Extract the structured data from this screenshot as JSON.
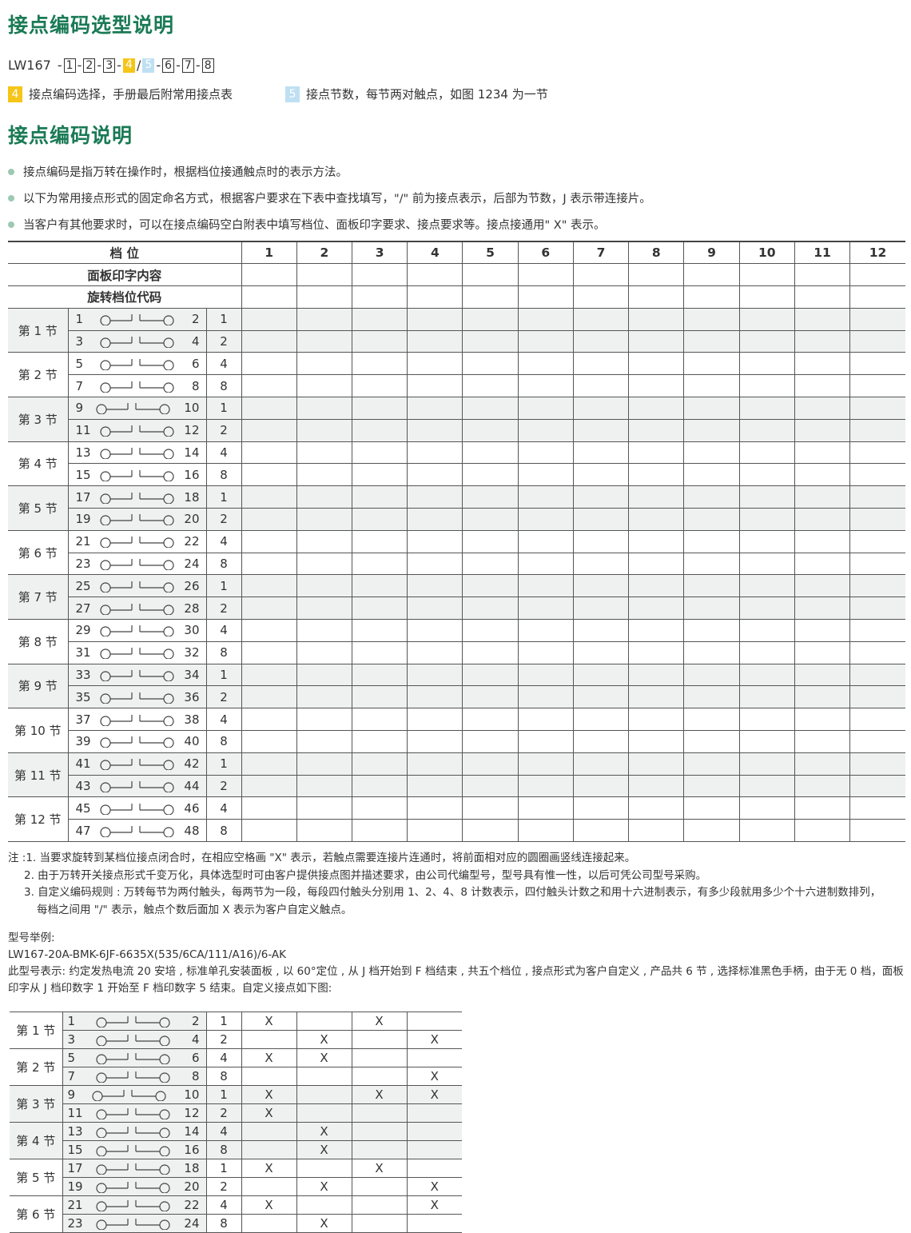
{
  "colors": {
    "heading": "#1a7a55",
    "highlight_4": "#f5c518",
    "highlight_5": "#bfe0f2",
    "row_shade": "#eff0f0"
  },
  "title1": "接点编码选型说明",
  "model_code": {
    "prefix": "LW167",
    "boxes": [
      "1",
      "2",
      "3",
      "4",
      "5",
      "6",
      "7",
      "8"
    ],
    "separator_slash": "/"
  },
  "legend": [
    {
      "tag": "4",
      "text": "接点编码选择，手册最后附常用接点表"
    },
    {
      "tag": "5",
      "text": "接点节数，每节两对触点，如图 1234 为一节"
    }
  ],
  "title2": "接点编码说明",
  "bullets": [
    "接点编码是指万转在操作时，根据档位接通触点时的表示方法。",
    "以下为常用接点形式的固定命名方式，根据客户要求在下表中查找填写，\"/\" 前为接点表示，后部为节数，J 表示带连接片。",
    "当客户有其他要求时，可以在接点编码空白附表中填写档位、面板印字要求、接点要求等。接点接通用\" X\" 表示。"
  ],
  "main_table": {
    "header_position": "档 位",
    "header_panel_text": "面板印字内容",
    "header_rotation_code": "旋转档位代码",
    "positions": [
      "1",
      "2",
      "3",
      "4",
      "5",
      "6",
      "7",
      "8",
      "9",
      "10",
      "11",
      "12"
    ],
    "contact_icon": "switch-contact-icon",
    "sections": [
      {
        "label": "第 1 节",
        "rows": [
          [
            "1",
            "2",
            "1"
          ],
          [
            "3",
            "4",
            "2"
          ]
        ]
      },
      {
        "label": "第 2 节",
        "rows": [
          [
            "5",
            "6",
            "4"
          ],
          [
            "7",
            "8",
            "8"
          ]
        ]
      },
      {
        "label": "第 3 节",
        "rows": [
          [
            "9",
            "10",
            "1"
          ],
          [
            "11",
            "12",
            "2"
          ]
        ]
      },
      {
        "label": "第 4 节",
        "rows": [
          [
            "13",
            "14",
            "4"
          ],
          [
            "15",
            "16",
            "8"
          ]
        ]
      },
      {
        "label": "第 5 节",
        "rows": [
          [
            "17",
            "18",
            "1"
          ],
          [
            "19",
            "20",
            "2"
          ]
        ]
      },
      {
        "label": "第 6 节",
        "rows": [
          [
            "21",
            "22",
            "4"
          ],
          [
            "23",
            "24",
            "8"
          ]
        ]
      },
      {
        "label": "第 7 节",
        "rows": [
          [
            "25",
            "26",
            "1"
          ],
          [
            "27",
            "28",
            "2"
          ]
        ]
      },
      {
        "label": "第 8 节",
        "rows": [
          [
            "29",
            "30",
            "4"
          ],
          [
            "31",
            "32",
            "8"
          ]
        ]
      },
      {
        "label": "第 9 节",
        "rows": [
          [
            "33",
            "34",
            "1"
          ],
          [
            "35",
            "36",
            "2"
          ]
        ]
      },
      {
        "label": "第 10 节",
        "rows": [
          [
            "37",
            "38",
            "4"
          ],
          [
            "39",
            "40",
            "8"
          ]
        ]
      },
      {
        "label": "第 11 节",
        "rows": [
          [
            "41",
            "42",
            "1"
          ],
          [
            "43",
            "44",
            "2"
          ]
        ]
      },
      {
        "label": "第 12 节",
        "rows": [
          [
            "45",
            "46",
            "4"
          ],
          [
            "47",
            "48",
            "8"
          ]
        ]
      }
    ]
  },
  "notes": [
    "注 :1. 当要求旋转到某档位接点闭合时，在相应空格画 \"X\" 表示，若触点需要连接片连通时，将前面相对应的圆圈画竖线连接起来。",
    "2. 由于万转开关接点形式千变万化，具体选型时可由客户提供接点图并描述要求，由公司代编型号，型号具有惟一性，以后可凭公司型号采购。",
    "3. 自定义编码规则 : 万转每节为两付触头，每两节为一段，每段四付触头分别用 1、2、4、8 计数表示，四付触头计数之和用十六进制表示，有多少段就用多少个十六进制数排列，",
    "每档之间用 \"/\" 表示，触点个数后面加 X 表示为客户自定义触点。"
  ],
  "example": {
    "label": "型号举例:",
    "model": "LW167-20A-BMK-6JF-6635X(535/6CA/111/A16)/6-AK",
    "description": "此型号表示:  约定发热电流 20 安培 , 标准单孔安装面板 , 以 60°定位 , 从 J 档开始到 F 档结束 , 共五个档位 , 接点形式为客户自定义 , 产品共 6 节 , 选择标准黑色手柄，由于无 0 档，面板印字从 J 档印数字 1 开始至 F 档印数字 5 结束。自定义接点如下图:",
    "sections": [
      {
        "label": "第 1 节",
        "rows": [
          {
            "c": [
              "1",
              "2",
              "1"
            ],
            "x": [
              "X",
              "",
              "X",
              ""
            ]
          },
          {
            "c": [
              "3",
              "4",
              "2"
            ],
            "x": [
              "",
              "X",
              "",
              "X"
            ]
          }
        ]
      },
      {
        "label": "第 2 节",
        "rows": [
          {
            "c": [
              "5",
              "6",
              "4"
            ],
            "x": [
              "X",
              "X",
              "",
              ""
            ]
          },
          {
            "c": [
              "7",
              "8",
              "8"
            ],
            "x": [
              "",
              "",
              "",
              "X"
            ]
          }
        ]
      },
      {
        "label": "第 3 节",
        "rows": [
          {
            "c": [
              "9",
              "10",
              "1"
            ],
            "x": [
              "X",
              "",
              "X",
              "X"
            ]
          },
          {
            "c": [
              "11",
              "12",
              "2"
            ],
            "x": [
              "X",
              "",
              "",
              ""
            ]
          }
        ]
      },
      {
        "label": "第 4 节",
        "rows": [
          {
            "c": [
              "13",
              "14",
              "4"
            ],
            "x": [
              "",
              "X",
              "",
              ""
            ]
          },
          {
            "c": [
              "15",
              "16",
              "8"
            ],
            "x": [
              "",
              "X",
              "",
              ""
            ]
          }
        ]
      },
      {
        "label": "第 5 节",
        "rows": [
          {
            "c": [
              "17",
              "18",
              "1"
            ],
            "x": [
              "X",
              "",
              "X",
              ""
            ]
          },
          {
            "c": [
              "19",
              "20",
              "2"
            ],
            "x": [
              "",
              "X",
              "",
              "X"
            ]
          }
        ]
      },
      {
        "label": "第 6 节",
        "rows": [
          {
            "c": [
              "21",
              "22",
              "4"
            ],
            "x": [
              "X",
              "",
              "",
              "X"
            ]
          },
          {
            "c": [
              "23",
              "24",
              "8"
            ],
            "x": [
              "",
              "X",
              "",
              ""
            ]
          }
        ]
      }
    ]
  }
}
